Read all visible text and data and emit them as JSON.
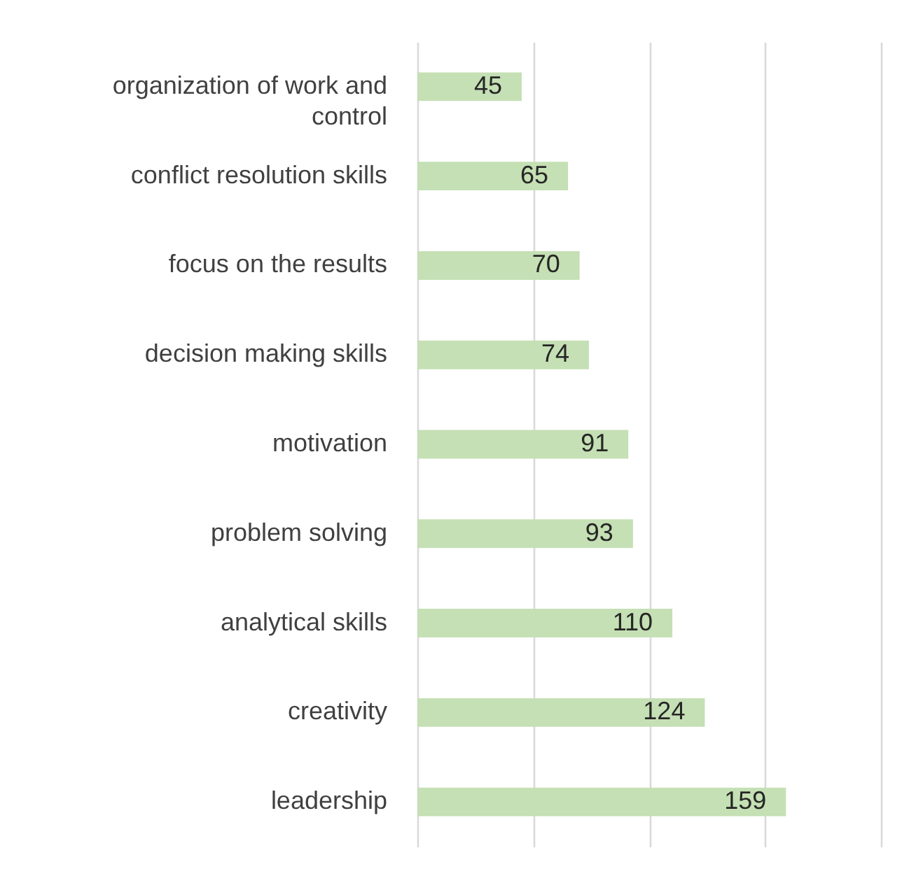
{
  "chart_data": {
    "type": "bar",
    "orientation": "horizontal",
    "categories": [
      "organization of work and control",
      "conflict resolution skills",
      "focus on the results",
      "decision making skills",
      "motivation",
      "problem solving",
      "analytical skills",
      "creativity",
      "leadership"
    ],
    "values": [
      45,
      65,
      70,
      74,
      91,
      93,
      110,
      124,
      159
    ],
    "color": "#c5e0b4",
    "data_labels": true,
    "xlim": [
      0,
      200
    ],
    "xticks": [
      {
        "value": 0,
        "label": null
      },
      {
        "value": 50,
        "label": null
      },
      {
        "value": 100,
        "label": null
      },
      {
        "value": 150,
        "label": null
      },
      {
        "value": 200,
        "label": null
      }
    ],
    "grid": "x",
    "tick_labels": "y"
  }
}
